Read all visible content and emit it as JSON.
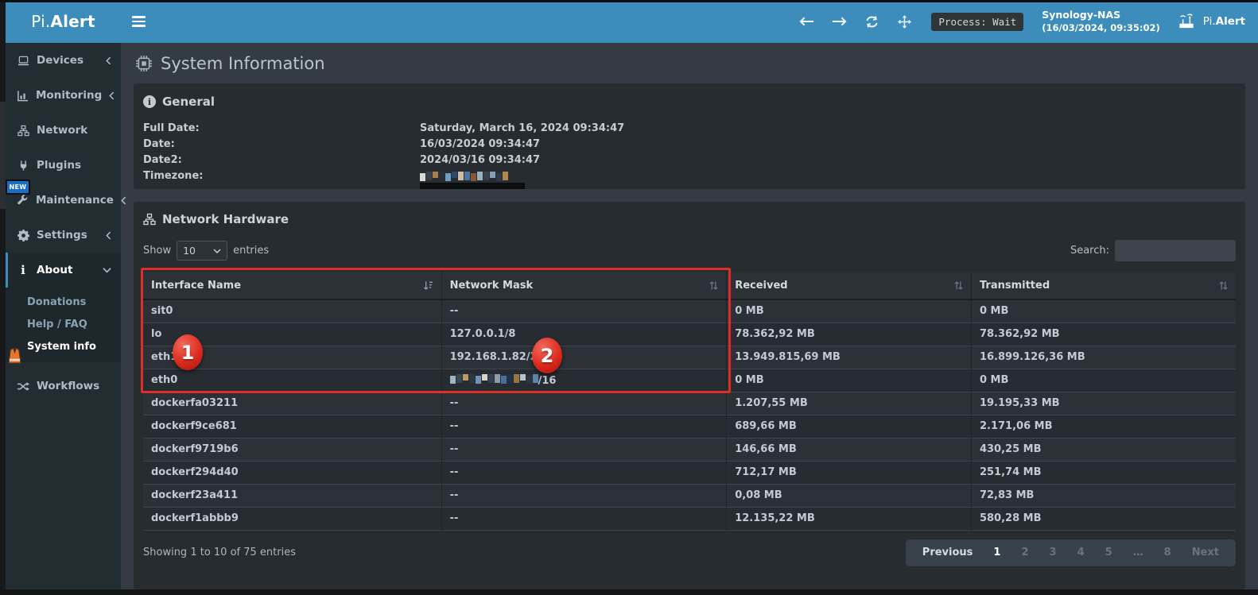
{
  "colors": {
    "accent_blue": "#3c8dbc",
    "sidebar_bg": "#222d32",
    "panel_bg": "#272c31",
    "annotation_red": "#dc2f26",
    "new_badge_blue": "#1a70c7",
    "vest_orange": "#e8762a"
  },
  "header": {
    "brand_prefix": "Pi.",
    "brand_suffix": "Alert",
    "process_badge": "Process: Wait",
    "device_name": "Synology-NAS",
    "device_time": "(16/03/2024, 09:35:02)",
    "brand_right_prefix": "Pi.",
    "brand_right_suffix": "Alert"
  },
  "sidebar": {
    "items": [
      {
        "label": "Devices",
        "icon": "laptop-icon",
        "chevron": "left"
      },
      {
        "label": "Monitoring",
        "icon": "chart-icon",
        "chevron": "left"
      },
      {
        "label": "Network",
        "icon": "network-icon",
        "chevron": "none"
      },
      {
        "label": "Plugins",
        "icon": "plug-icon",
        "chevron": "none"
      },
      {
        "label": "Maintenance",
        "icon": "wrench-icon",
        "chevron": "left"
      },
      {
        "label": "Settings",
        "icon": "gear-icon",
        "chevron": "left"
      },
      {
        "label": "About",
        "icon": "info-icon",
        "chevron": "down",
        "active": true
      }
    ],
    "maintenance_badge": "NEW",
    "subitems": [
      "Donations",
      "Help / FAQ",
      "System info"
    ],
    "current_subitem": "System info",
    "workflows_label": "Workflows"
  },
  "page": {
    "title": "System Information"
  },
  "general": {
    "title": "General",
    "rows": [
      {
        "label": "Full Date:",
        "value": "Saturday, March 16, 2024 09:34:47"
      },
      {
        "label": "Date:",
        "value": "16/03/2024 09:34:47"
      },
      {
        "label": "Date2:",
        "value": "2024/03/16 09:34:47"
      },
      {
        "label": "Timezone:",
        "value": "",
        "redacted": true
      }
    ],
    "timezone_mosaic": [
      "#d9d9d9",
      "#39414a",
      "#a97f4e",
      "#2a313a",
      "#6f9cc0",
      "#31496b",
      "#c9bfa4",
      "#4c76a2",
      "#8a5730",
      "#9ab0bc",
      "#39414a",
      "#7fa3b5",
      "#2f3a46",
      "#b0884f"
    ]
  },
  "nh": {
    "title": "Network Hardware",
    "show_label": "Show",
    "page_length": "10",
    "entries_label": "entries",
    "search_label": "Search:",
    "columns": [
      "Interface Name",
      "Network Mask",
      "Received",
      "Transmitted"
    ],
    "rows": [
      {
        "interface": "sit0",
        "mask": "--",
        "received": "0 MB",
        "transmitted": "0 MB"
      },
      {
        "interface": "lo",
        "mask": "127.0.0.1/8",
        "received": "78.362,92 MB",
        "transmitted": "78.362,92 MB"
      },
      {
        "interface": "eth1",
        "mask": "192.168.1.82/24",
        "received": "13.949.815,69 MB",
        "transmitted": "16.899.126,36 MB"
      },
      {
        "interface": "eth0",
        "mask": "/16",
        "mask_redacted": true,
        "received": "0 MB",
        "transmitted": "0 MB"
      },
      {
        "interface": "dockerfa03211",
        "mask": "--",
        "received": "1.207,55 MB",
        "transmitted": "19.195,33 MB"
      },
      {
        "interface": "dockerf9ce681",
        "mask": "--",
        "received": "689,66 MB",
        "transmitted": "2.171,06 MB"
      },
      {
        "interface": "dockerf9719b6",
        "mask": "--",
        "received": "146,66 MB",
        "transmitted": "430,25 MB"
      },
      {
        "interface": "dockerf294d40",
        "mask": "--",
        "received": "712,17 MB",
        "transmitted": "251,74 MB"
      },
      {
        "interface": "dockerf23a411",
        "mask": "--",
        "received": "0,08 MB",
        "transmitted": "72,83 MB"
      },
      {
        "interface": "dockerf1abbb9",
        "mask": "--",
        "received": "12.135,22 MB",
        "transmitted": "580,28 MB"
      }
    ],
    "mask_mosaic": [
      "#9fb3c0",
      "#3c4654",
      "#c09a62",
      "#2e3744",
      "#6f93b5",
      "#d8d3c2",
      "#34405a",
      "#8e9aa6",
      "#4a6f9b",
      "#23304a",
      "#9c7440",
      "#b9c2c8",
      "#2c3540",
      "#5e82a8"
    ],
    "summary": "Showing 1 to 10 of 75 entries",
    "pagination": [
      "Previous",
      "1",
      "2",
      "3",
      "4",
      "5",
      "…",
      "8",
      "Next"
    ],
    "active_page": "1"
  },
  "annotations": {
    "step1": "1",
    "step2": "2"
  }
}
